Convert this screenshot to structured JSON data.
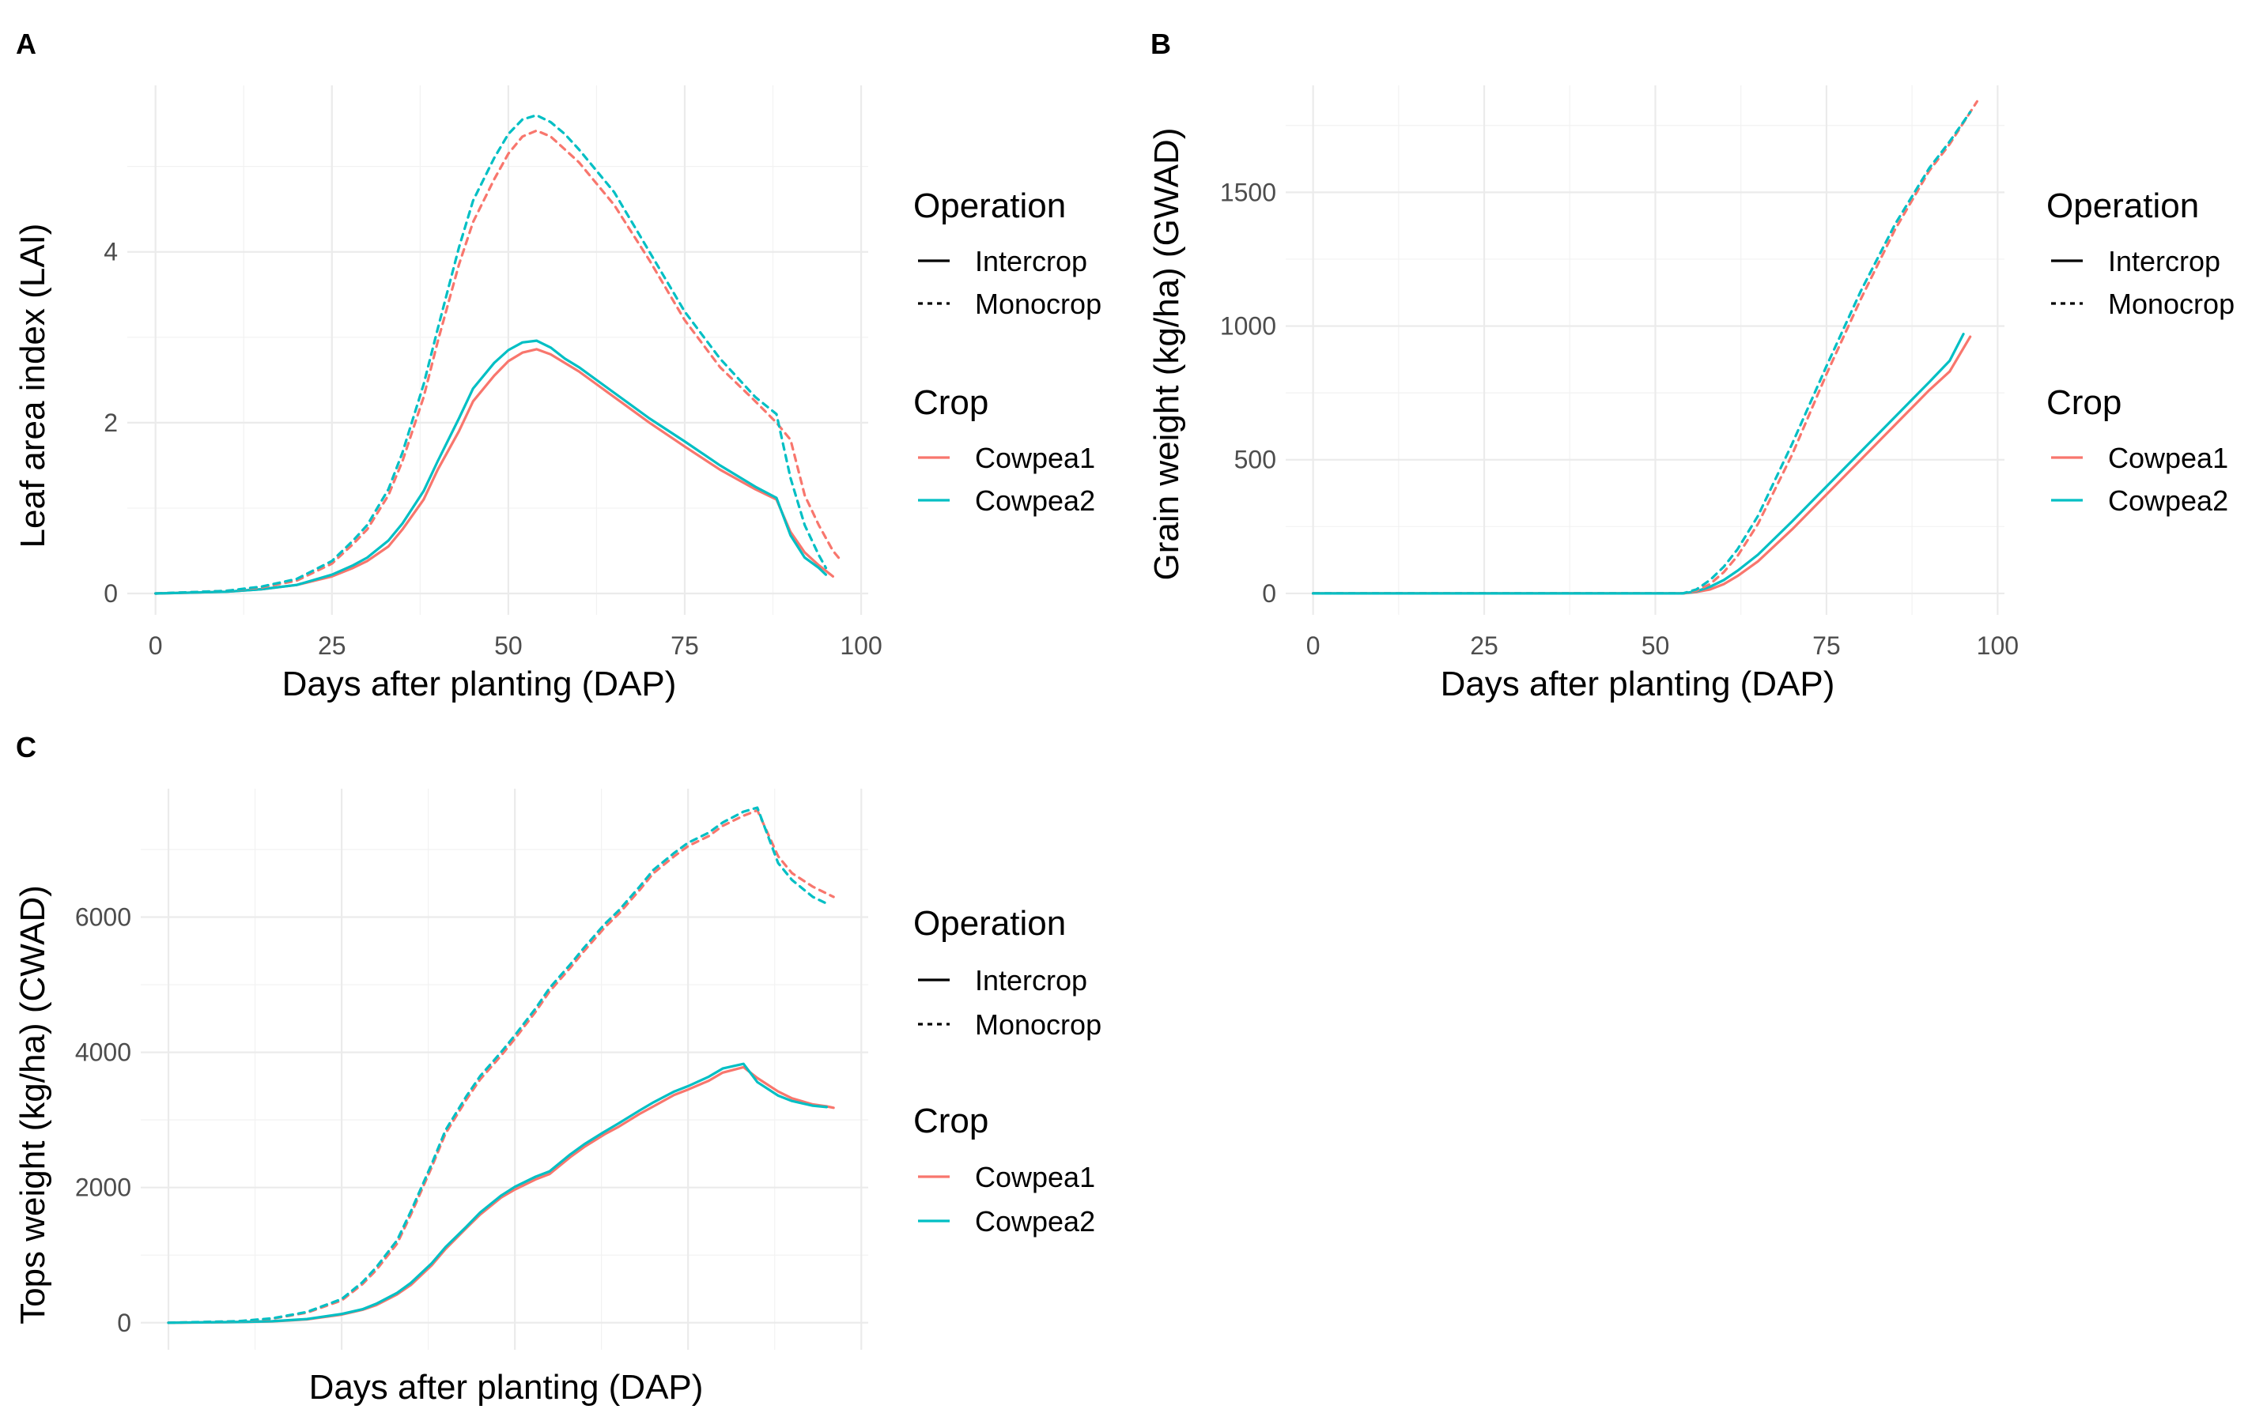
{
  "chart_data": [
    {
      "panel": "A",
      "type": "line",
      "xlabel": "Days after planting (DAP)",
      "ylabel": "Leaf area index (LAI)",
      "xlim": [
        -4,
        101
      ],
      "ylim": [
        -0.25,
        5.95
      ],
      "xticks": [
        0,
        25,
        50,
        75,
        100
      ],
      "xticks_show_labels": true,
      "yticks": [
        0,
        2,
        4
      ],
      "grid": true,
      "legend_position": "right",
      "series": [
        {
          "name": "Cowpea1 Intercrop",
          "crop": "Cowpea1",
          "operation": "Intercrop",
          "color": "#F8766D",
          "dash": "solid",
          "x": [
            0,
            10,
            15,
            20,
            25,
            28,
            30,
            33,
            35,
            38,
            40,
            43,
            45,
            48,
            50,
            52,
            54,
            56,
            58,
            60,
            65,
            70,
            75,
            80,
            85,
            88,
            90,
            92,
            94,
            96
          ],
          "y": [
            0,
            0.02,
            0.05,
            0.1,
            0.2,
            0.3,
            0.38,
            0.55,
            0.75,
            1.1,
            1.45,
            1.9,
            2.25,
            2.55,
            2.72,
            2.82,
            2.86,
            2.8,
            2.7,
            2.6,
            2.3,
            2.0,
            1.72,
            1.45,
            1.22,
            1.1,
            0.72,
            0.48,
            0.33,
            0.2
          ]
        },
        {
          "name": "Cowpea2 Intercrop",
          "crop": "Cowpea2",
          "operation": "Intercrop",
          "color": "#00BFC4",
          "dash": "solid",
          "x": [
            0,
            10,
            15,
            20,
            25,
            28,
            30,
            33,
            35,
            38,
            40,
            43,
            45,
            48,
            50,
            52,
            54,
            56,
            58,
            60,
            65,
            70,
            75,
            80,
            85,
            88,
            90,
            92,
            94,
            95
          ],
          "y": [
            0,
            0.02,
            0.05,
            0.1,
            0.22,
            0.33,
            0.42,
            0.62,
            0.82,
            1.2,
            1.55,
            2.05,
            2.4,
            2.7,
            2.85,
            2.94,
            2.96,
            2.88,
            2.75,
            2.65,
            2.35,
            2.05,
            1.78,
            1.5,
            1.25,
            1.12,
            0.68,
            0.42,
            0.3,
            0.22
          ]
        },
        {
          "name": "Cowpea1 Monocrop",
          "crop": "Cowpea1",
          "operation": "Monocrop",
          "color": "#F8766D",
          "dash": "dashed",
          "x": [
            0,
            10,
            15,
            20,
            25,
            28,
            30,
            33,
            35,
            38,
            40,
            43,
            45,
            48,
            50,
            52,
            54,
            56,
            58,
            60,
            65,
            70,
            75,
            80,
            85,
            88,
            90,
            92,
            94,
            96,
            97
          ],
          "y": [
            0,
            0.03,
            0.07,
            0.15,
            0.35,
            0.58,
            0.75,
            1.15,
            1.55,
            2.3,
            2.95,
            3.85,
            4.35,
            4.85,
            5.15,
            5.35,
            5.42,
            5.35,
            5.2,
            5.05,
            4.55,
            3.9,
            3.2,
            2.65,
            2.25,
            2.0,
            1.8,
            1.15,
            0.8,
            0.5,
            0.4
          ]
        },
        {
          "name": "Cowpea2 Monocrop",
          "crop": "Cowpea2",
          "operation": "Monocrop",
          "color": "#00BFC4",
          "dash": "dashed",
          "x": [
            0,
            10,
            15,
            20,
            25,
            28,
            30,
            33,
            35,
            38,
            40,
            43,
            45,
            48,
            50,
            52,
            54,
            56,
            58,
            60,
            65,
            70,
            75,
            80,
            85,
            88,
            90,
            92,
            94,
            95
          ],
          "y": [
            0,
            0.03,
            0.08,
            0.17,
            0.38,
            0.62,
            0.8,
            1.22,
            1.65,
            2.45,
            3.1,
            4.05,
            4.6,
            5.1,
            5.38,
            5.55,
            5.6,
            5.52,
            5.38,
            5.2,
            4.7,
            4.0,
            3.3,
            2.75,
            2.3,
            2.1,
            1.35,
            0.8,
            0.45,
            0.3
          ]
        }
      ]
    },
    {
      "panel": "B",
      "type": "line",
      "xlabel": "Days after planting (DAP)",
      "ylabel": "Grain weight (kg/ha) (GWAD)",
      "xlim": [
        -4,
        101
      ],
      "ylim": [
        -80,
        1900
      ],
      "xticks": [
        0,
        25,
        50,
        75,
        100
      ],
      "xticks_show_labels": true,
      "yticks": [
        0,
        500,
        1000,
        1500
      ],
      "grid": true,
      "legend_position": "right",
      "series": [
        {
          "name": "Cowpea1 Intercrop",
          "crop": "Cowpea1",
          "operation": "Intercrop",
          "color": "#F8766D",
          "dash": "solid",
          "x": [
            0,
            54,
            56,
            58,
            60,
            62,
            65,
            70,
            75,
            80,
            85,
            90,
            93,
            96
          ],
          "y": [
            0,
            0,
            5,
            15,
            35,
            65,
            120,
            240,
            370,
            500,
            630,
            760,
            830,
            960
          ]
        },
        {
          "name": "Cowpea2 Intercrop",
          "crop": "Cowpea2",
          "operation": "Intercrop",
          "color": "#00BFC4",
          "dash": "solid",
          "x": [
            0,
            54,
            56,
            58,
            60,
            62,
            65,
            70,
            75,
            80,
            85,
            90,
            93,
            95
          ],
          "y": [
            0,
            0,
            8,
            25,
            50,
            85,
            145,
            270,
            400,
            530,
            660,
            790,
            870,
            970
          ]
        },
        {
          "name": "Cowpea1 Monocrop",
          "crop": "Cowpea1",
          "operation": "Monocrop",
          "color": "#F8766D",
          "dash": "dashed",
          "x": [
            0,
            54,
            56,
            58,
            60,
            62,
            65,
            70,
            75,
            80,
            85,
            90,
            93,
            95,
            97
          ],
          "y": [
            0,
            0,
            10,
            35,
            80,
            140,
            260,
            520,
            820,
            1100,
            1360,
            1580,
            1680,
            1760,
            1840
          ]
        },
        {
          "name": "Cowpea2 Monocrop",
          "crop": "Cowpea2",
          "operation": "Monocrop",
          "color": "#00BFC4",
          "dash": "dashed",
          "x": [
            0,
            54,
            56,
            58,
            60,
            62,
            65,
            70,
            75,
            80,
            85,
            90,
            93,
            96
          ],
          "y": [
            0,
            0,
            15,
            50,
            100,
            165,
            290,
            560,
            850,
            1130,
            1380,
            1590,
            1690,
            1800
          ]
        }
      ]
    },
    {
      "panel": "C",
      "type": "line",
      "xlabel": "Days after planting (DAP)",
      "ylabel": "Tops weight (kg/ha) (CWAD)",
      "xlim": [
        -4,
        101
      ],
      "ylim": [
        -400,
        7900
      ],
      "xticks": [
        0,
        25,
        50,
        75,
        100
      ],
      "xticks_show_labels": false,
      "yticks": [
        0,
        2000,
        4000,
        6000
      ],
      "grid": true,
      "legend_position": "right",
      "series": [
        {
          "name": "Cowpea1 Intercrop",
          "crop": "Cowpea1",
          "operation": "Intercrop",
          "color": "#F8766D",
          "dash": "solid",
          "x": [
            0,
            10,
            15,
            20,
            25,
            28,
            30,
            33,
            35,
            38,
            40,
            43,
            45,
            48,
            50,
            53,
            55,
            58,
            60,
            63,
            65,
            68,
            70,
            73,
            75,
            78,
            80,
            83,
            85,
            88,
            90,
            93,
            95,
            96
          ],
          "y": [
            0,
            10,
            20,
            50,
            120,
            190,
            260,
            420,
            560,
            850,
            1090,
            1400,
            1600,
            1850,
            1970,
            2120,
            2200,
            2450,
            2600,
            2790,
            2900,
            3090,
            3200,
            3370,
            3450,
            3580,
            3700,
            3780,
            3620,
            3420,
            3320,
            3230,
            3200,
            3180
          ]
        },
        {
          "name": "Cowpea2 Intercrop",
          "crop": "Cowpea2",
          "operation": "Intercrop",
          "color": "#00BFC4",
          "dash": "solid",
          "x": [
            0,
            10,
            15,
            20,
            25,
            28,
            30,
            33,
            35,
            38,
            40,
            43,
            45,
            48,
            50,
            53,
            55,
            58,
            60,
            63,
            65,
            68,
            70,
            73,
            75,
            78,
            80,
            83,
            85,
            88,
            90,
            93,
            95
          ],
          "y": [
            0,
            10,
            22,
            55,
            130,
            200,
            280,
            440,
            590,
            880,
            1120,
            1420,
            1630,
            1880,
            2010,
            2160,
            2240,
            2490,
            2640,
            2830,
            2950,
            3140,
            3260,
            3420,
            3500,
            3640,
            3760,
            3830,
            3560,
            3360,
            3280,
            3210,
            3190
          ]
        },
        {
          "name": "Cowpea1 Monocrop",
          "crop": "Cowpea1",
          "operation": "Monocrop",
          "color": "#F8766D",
          "dash": "dashed",
          "x": [
            0,
            10,
            15,
            20,
            25,
            28,
            30,
            33,
            35,
            38,
            40,
            43,
            45,
            48,
            50,
            53,
            55,
            58,
            60,
            63,
            65,
            68,
            70,
            73,
            75,
            78,
            80,
            83,
            85,
            88,
            90,
            93,
            95,
            96
          ],
          "y": [
            0,
            20,
            60,
            150,
            330,
            570,
            780,
            1170,
            1600,
            2300,
            2800,
            3300,
            3600,
            3950,
            4200,
            4600,
            4900,
            5250,
            5500,
            5850,
            6050,
            6400,
            6650,
            6900,
            7050,
            7200,
            7350,
            7500,
            7580,
            6900,
            6650,
            6450,
            6350,
            6300
          ]
        },
        {
          "name": "Cowpea2 Monocrop",
          "crop": "Cowpea2",
          "operation": "Monocrop",
          "color": "#00BFC4",
          "dash": "dashed",
          "x": [
            0,
            10,
            15,
            20,
            25,
            28,
            30,
            33,
            35,
            38,
            40,
            43,
            45,
            48,
            50,
            53,
            55,
            58,
            60,
            63,
            65,
            68,
            70,
            73,
            75,
            78,
            80,
            83,
            85,
            88,
            90,
            93,
            95
          ],
          "y": [
            0,
            22,
            65,
            160,
            350,
            600,
            820,
            1220,
            1650,
            2350,
            2850,
            3350,
            3650,
            4000,
            4250,
            4650,
            4950,
            5300,
            5550,
            5900,
            6100,
            6450,
            6700,
            6950,
            7100,
            7250,
            7400,
            7560,
            7620,
            6800,
            6550,
            6300,
            6200
          ]
        }
      ]
    }
  ],
  "panels": {
    "A": {
      "tag": "A"
    },
    "B": {
      "tag": "B"
    },
    "C": {
      "tag": "C"
    }
  },
  "legend": {
    "operation_title": "Operation",
    "operation_items": [
      {
        "label": "Intercrop",
        "dash": "solid"
      },
      {
        "label": "Monocrop",
        "dash": "dashed"
      }
    ],
    "crop_title": "Crop",
    "crop_items": [
      {
        "label": "Cowpea1",
        "color": "#F8766D"
      },
      {
        "label": "Cowpea2",
        "color": "#00BFC4"
      }
    ]
  }
}
